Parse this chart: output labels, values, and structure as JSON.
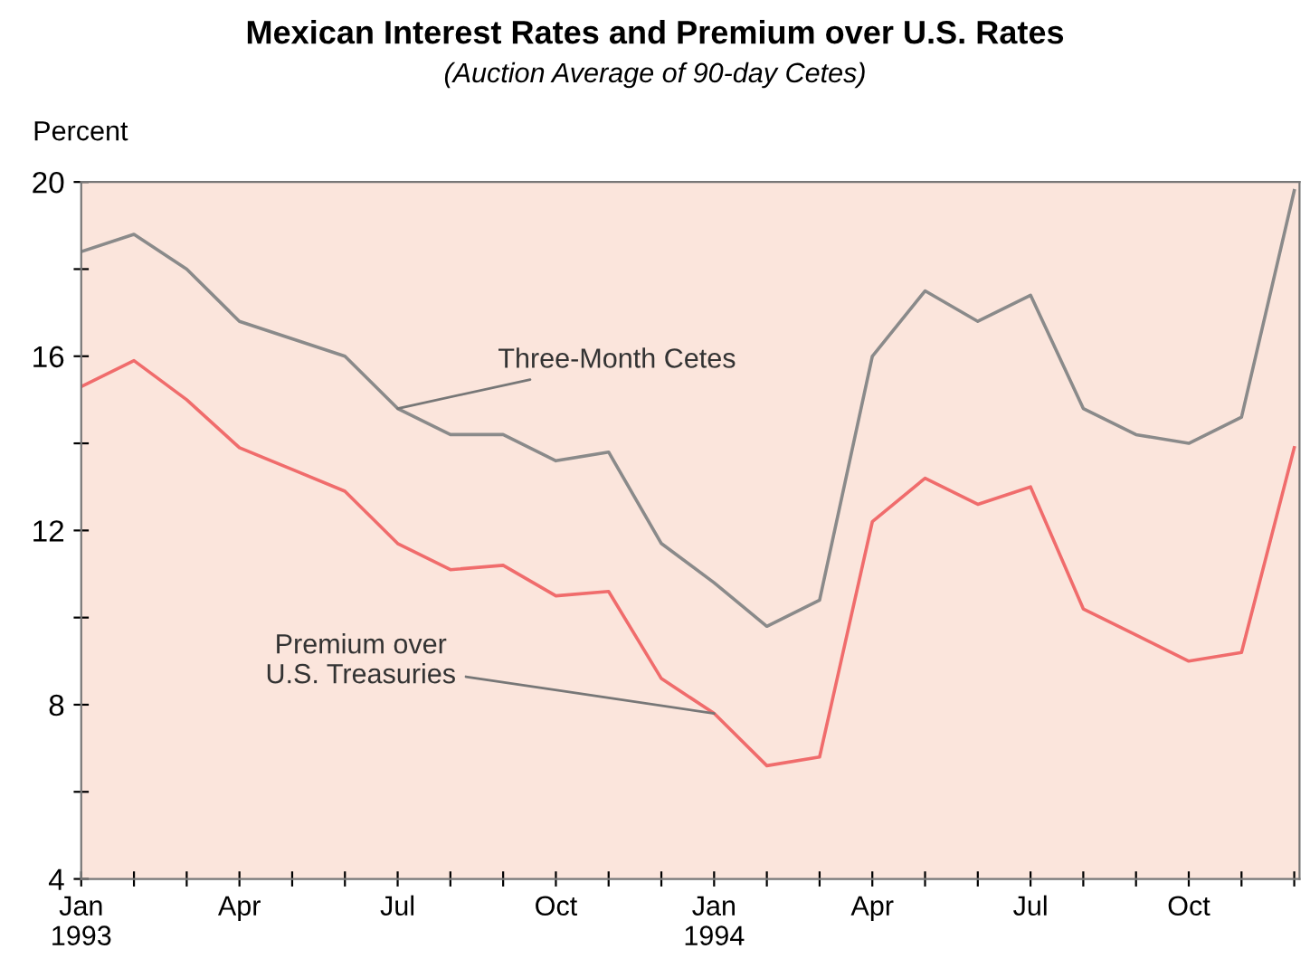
{
  "chart_data": {
    "type": "line",
    "title": "Mexican Interest Rates and Premium over U.S. Rates",
    "subtitle": "(Auction Average of 90-day Cetes)",
    "ylabel": "Percent",
    "categories": [
      "Jan\n1993",
      null,
      null,
      "Apr",
      null,
      null,
      "Jul",
      null,
      null,
      "Oct",
      null,
      null,
      "Jan\n1994",
      null,
      null,
      "Apr",
      null,
      null,
      "Jul",
      null,
      null,
      "Oct",
      null,
      null
    ],
    "series": [
      {
        "color": "#8a8a8a",
        "values": [
          18.4,
          18.8,
          18.0,
          16.8,
          16.4,
          16.0,
          14.8,
          14.2,
          14.2,
          13.6,
          13.8,
          11.7,
          10.8,
          9.8,
          10.4,
          16.0,
          17.5,
          16.8,
          17.4,
          14.8,
          14.2,
          14.0,
          14.6,
          19.8
        ]
      },
      {
        "color": "#f06c6c",
        "values": [
          15.3,
          15.9,
          15.0,
          13.9,
          13.4,
          12.9,
          11.7,
          11.1,
          11.2,
          10.5,
          10.6,
          8.6,
          7.8,
          6.6,
          6.8,
          12.2,
          13.2,
          12.6,
          13.0,
          10.2,
          9.6,
          9.0,
          9.2,
          13.9
        ]
      }
    ],
    "annotations": [
      {
        "text": "Three-Month Cetes",
        "x": "Jul",
        "y": 14.8
      },
      {
        "text": "Premium over\nU.S. Treasuries",
        "x": "Jan\n1994",
        "y": 7.8
      }
    ],
    "ylim": [
      4,
      20
    ],
    "yticks": [
      4,
      {
        "value": 6,
        "label": null
      },
      8,
      {
        "value": 10,
        "label": null
      },
      12,
      {
        "value": 14,
        "label": null
      },
      16,
      {
        "value": 18,
        "label": null
      },
      20
    ],
    "grid": false,
    "legend": false,
    "marker": "none",
    "line_style": "solid"
  }
}
